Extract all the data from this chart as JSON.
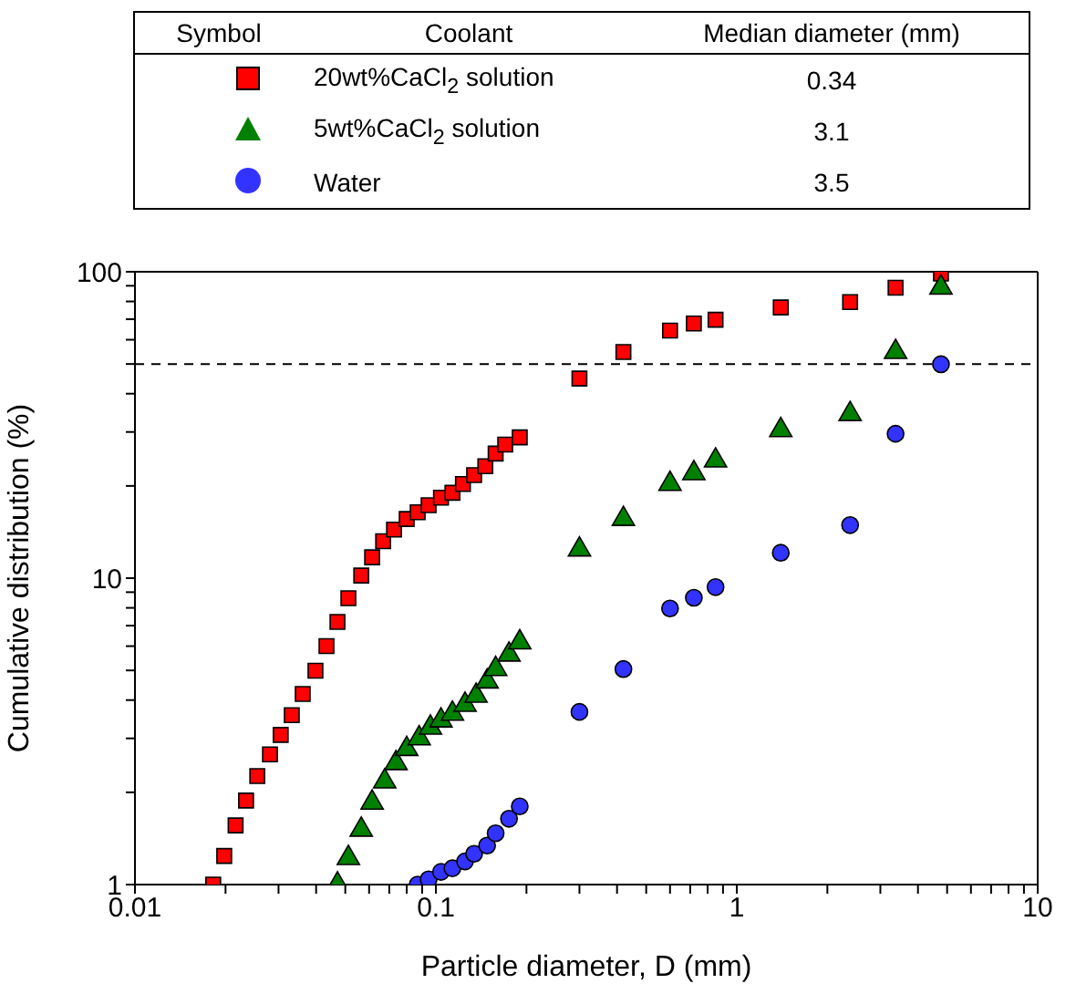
{
  "chart_data": {
    "type": "scatter",
    "xlabel": "Particle diameter, D (mm)",
    "ylabel": "Cumulative distribution (%)",
    "log": "xy",
    "xlim": [
      0.01,
      10
    ],
    "ylim": [
      1,
      100
    ],
    "xticks": [
      0.01,
      {
        "value": 0.02,
        "label": null
      },
      {
        "value": 0.03,
        "label": null
      },
      {
        "value": 0.04,
        "label": null
      },
      {
        "value": 0.05,
        "label": null
      },
      {
        "value": 0.06,
        "label": null
      },
      {
        "value": 0.07,
        "label": null
      },
      {
        "value": 0.08,
        "label": null
      },
      {
        "value": 0.09,
        "label": null
      },
      0.1,
      {
        "value": 0.2,
        "label": null
      },
      {
        "value": 0.3,
        "label": null
      },
      {
        "value": 0.4,
        "label": null
      },
      {
        "value": 0.5,
        "label": null
      },
      {
        "value": 0.6,
        "label": null
      },
      {
        "value": 0.7,
        "label": null
      },
      {
        "value": 0.8,
        "label": null
      },
      {
        "value": 0.9,
        "label": null
      },
      1,
      {
        "value": 2,
        "label": null
      },
      {
        "value": 3,
        "label": null
      },
      {
        "value": 4,
        "label": null
      },
      {
        "value": 5,
        "label": null
      },
      {
        "value": 6,
        "label": null
      },
      {
        "value": 7,
        "label": null
      },
      {
        "value": 8,
        "label": null
      },
      {
        "value": 9,
        "label": null
      },
      10
    ],
    "yticks": [
      1,
      {
        "value": 2,
        "label": null
      },
      {
        "value": 3,
        "label": null
      },
      {
        "value": 4,
        "label": null
      },
      {
        "value": 5,
        "label": null
      },
      {
        "value": 6,
        "label": null
      },
      {
        "value": 7,
        "label": null
      },
      {
        "value": 8,
        "label": null
      },
      {
        "value": 9,
        "label": null
      },
      10,
      {
        "value": 20,
        "label": null
      },
      {
        "value": 30,
        "label": null
      },
      {
        "value": 40,
        "label": null
      },
      {
        "value": 50,
        "label": null
      },
      {
        "value": 60,
        "label": null
      },
      {
        "value": 70,
        "label": null
      },
      {
        "value": 80,
        "label": null
      },
      {
        "value": 90,
        "label": null
      },
      100
    ],
    "legend": "top",
    "legend_title": "Coolant",
    "annotations": [
      "Symbol",
      "Median diameter (mm)",
      "0.34",
      "3.1",
      "3.5"
    ],
    "ref_lines": [
      {
        "axis": "y",
        "value": 50,
        "color": "#000000",
        "line_style": "dashed"
      }
    ],
    "series": [
      {
        "name": "20wt%CaCl$_{2}$ solution",
        "color": "#ff0000",
        "marker": "square",
        "x": [
          0.0182,
          0.0198,
          0.0216,
          0.0234,
          0.0255,
          0.0281,
          0.0305,
          0.0332,
          0.0361,
          0.0398,
          0.0433,
          0.0471,
          0.0512,
          0.0565,
          0.0614,
          0.0668,
          0.0726,
          0.08,
          0.087,
          0.0946,
          0.104,
          0.1135,
          0.123,
          0.134,
          0.146,
          0.158,
          0.17,
          0.19,
          0.3,
          0.42,
          0.6,
          0.72,
          0.85,
          1.4,
          2.38,
          3.37,
          4.77
        ],
        "values": [
          1.0,
          1.24,
          1.56,
          1.88,
          2.26,
          2.66,
          3.08,
          3.57,
          4.19,
          4.99,
          6.0,
          7.2,
          8.6,
          10.2,
          11.7,
          13.2,
          14.4,
          15.6,
          16.4,
          17.3,
          18.3,
          19.0,
          20.3,
          21.7,
          23.2,
          25.5,
          27.3,
          28.8,
          44.8,
          54.7,
          64.3,
          67.8,
          69.7,
          76.5,
          79.6,
          88.7,
          98.6
        ]
      },
      {
        "name": "5wt%CaCl$_{2}$ solution",
        "color": "#008000",
        "marker": "triangle",
        "x": [
          0.0471,
          0.0512,
          0.0565,
          0.0614,
          0.0676,
          0.0737,
          0.08,
          0.088,
          0.0959,
          0.104,
          0.1135,
          0.125,
          0.136,
          0.148,
          0.158,
          0.175,
          0.19,
          0.3,
          0.42,
          0.6,
          0.72,
          0.85,
          1.4,
          2.38,
          3.37,
          4.77
        ],
        "values": [
          1.0,
          1.22,
          1.51,
          1.85,
          2.17,
          2.49,
          2.77,
          3.0,
          3.25,
          3.43,
          3.61,
          3.86,
          4.13,
          4.6,
          5.05,
          5.63,
          6.17,
          12.4,
          15.6,
          20.3,
          22.0,
          24.2,
          30.4,
          34.3,
          54.7,
          88.7
        ]
      },
      {
        "name": "Water",
        "color": "#3333ff",
        "marker": "circle",
        "x": [
          0.087,
          0.0946,
          0.104,
          0.1135,
          0.125,
          0.134,
          0.148,
          0.158,
          0.175,
          0.19,
          0.3,
          0.42,
          0.6,
          0.72,
          0.85,
          1.4,
          2.38,
          3.37,
          4.77
        ],
        "values": [
          1.0,
          1.04,
          1.1,
          1.13,
          1.19,
          1.26,
          1.34,
          1.47,
          1.64,
          1.8,
          3.66,
          5.05,
          7.96,
          8.63,
          9.35,
          12.1,
          14.9,
          29.6,
          49.9
        ]
      }
    ]
  }
}
